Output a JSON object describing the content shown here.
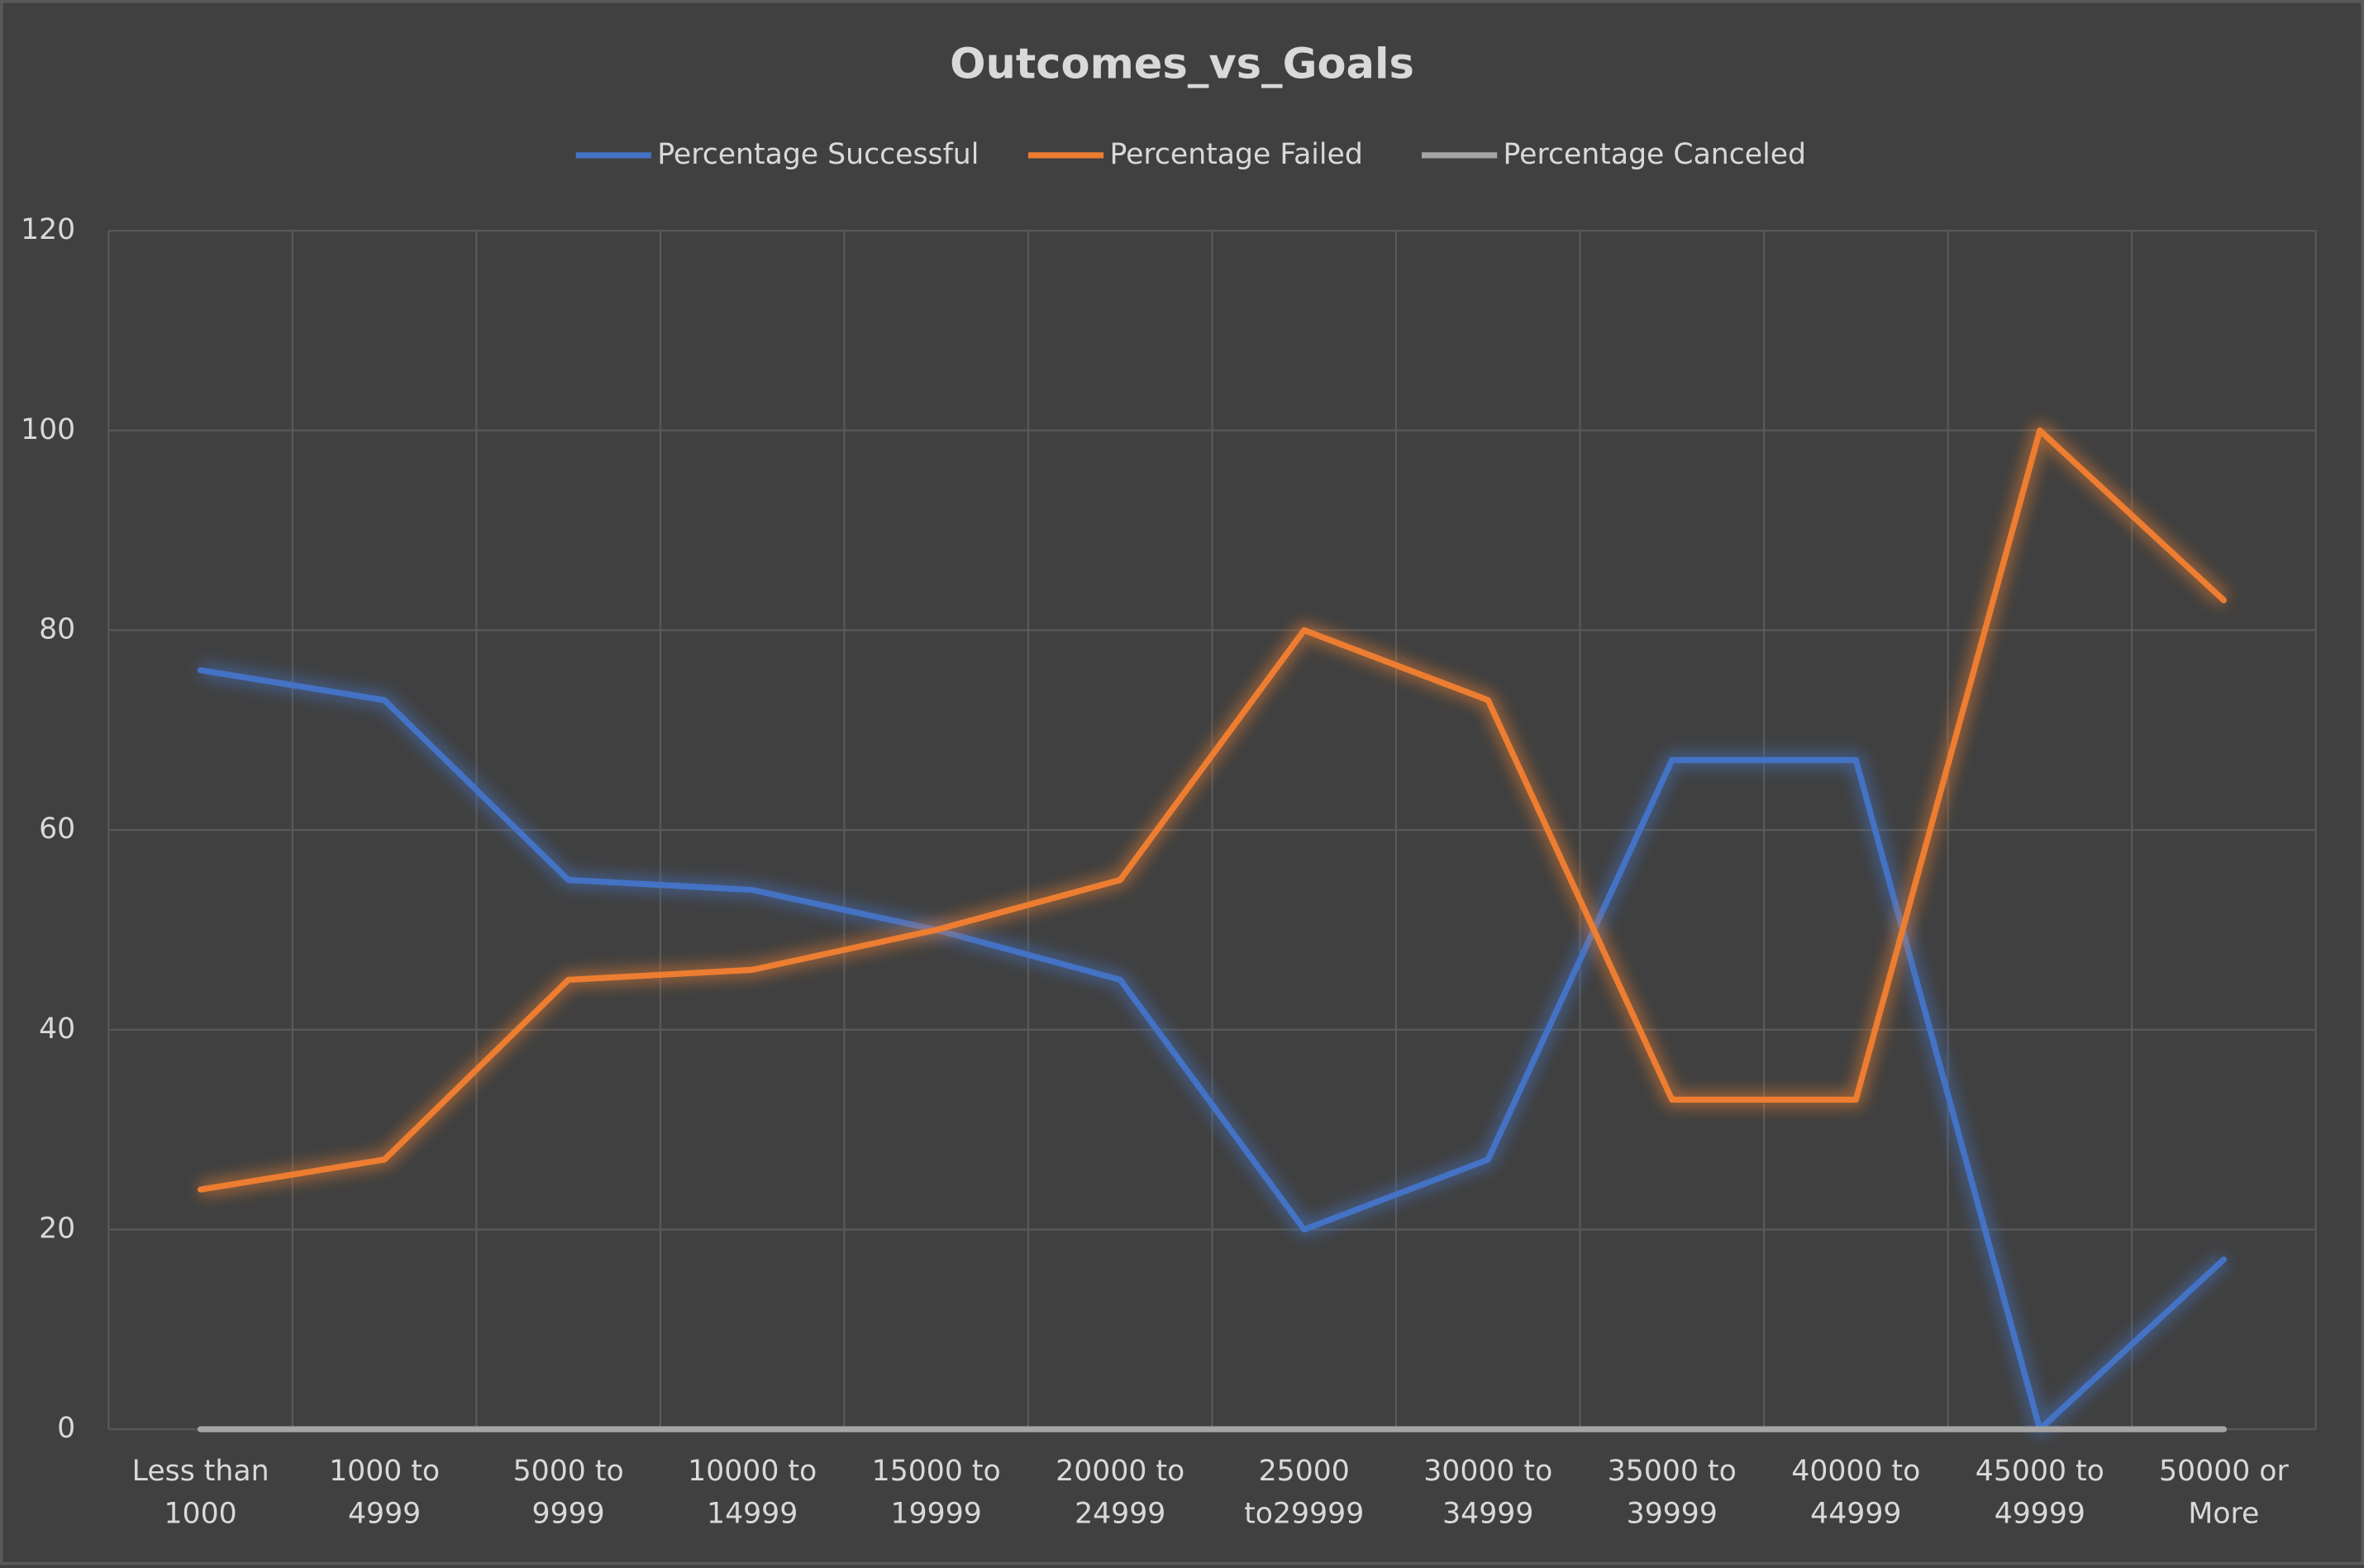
{
  "chart_data": {
    "type": "line",
    "title": "Outcomes_vs_Goals",
    "categories": [
      "Less than 1000",
      "1000 to 4999",
      "5000 to 9999",
      "10000 to 14999",
      "15000 to 19999",
      "20000 to 24999",
      "25000 to29999",
      "30000 to 34999",
      "35000 to 39999",
      "40000 to 44999",
      "45000 to 49999",
      "50000 or More"
    ],
    "series": [
      {
        "name": "Percentage Successful",
        "color": "#4472c4",
        "values": [
          76,
          73,
          55,
          54,
          50,
          45,
          20,
          27,
          67,
          67,
          0,
          17
        ]
      },
      {
        "name": "Percentage Failed",
        "color": "#ed7d31",
        "values": [
          24,
          27,
          45,
          46,
          50,
          55,
          80,
          73,
          33,
          33,
          100,
          83
        ]
      },
      {
        "name": "Percentage Canceled",
        "color": "#a5a5a5",
        "values": [
          0,
          0,
          0,
          0,
          0,
          0,
          0,
          0,
          0,
          0,
          0,
          0
        ]
      }
    ],
    "ylim": [
      0,
      120
    ],
    "yticks": [
      0,
      20,
      40,
      60,
      80,
      100,
      120
    ],
    "grid": true,
    "legend": "top"
  }
}
